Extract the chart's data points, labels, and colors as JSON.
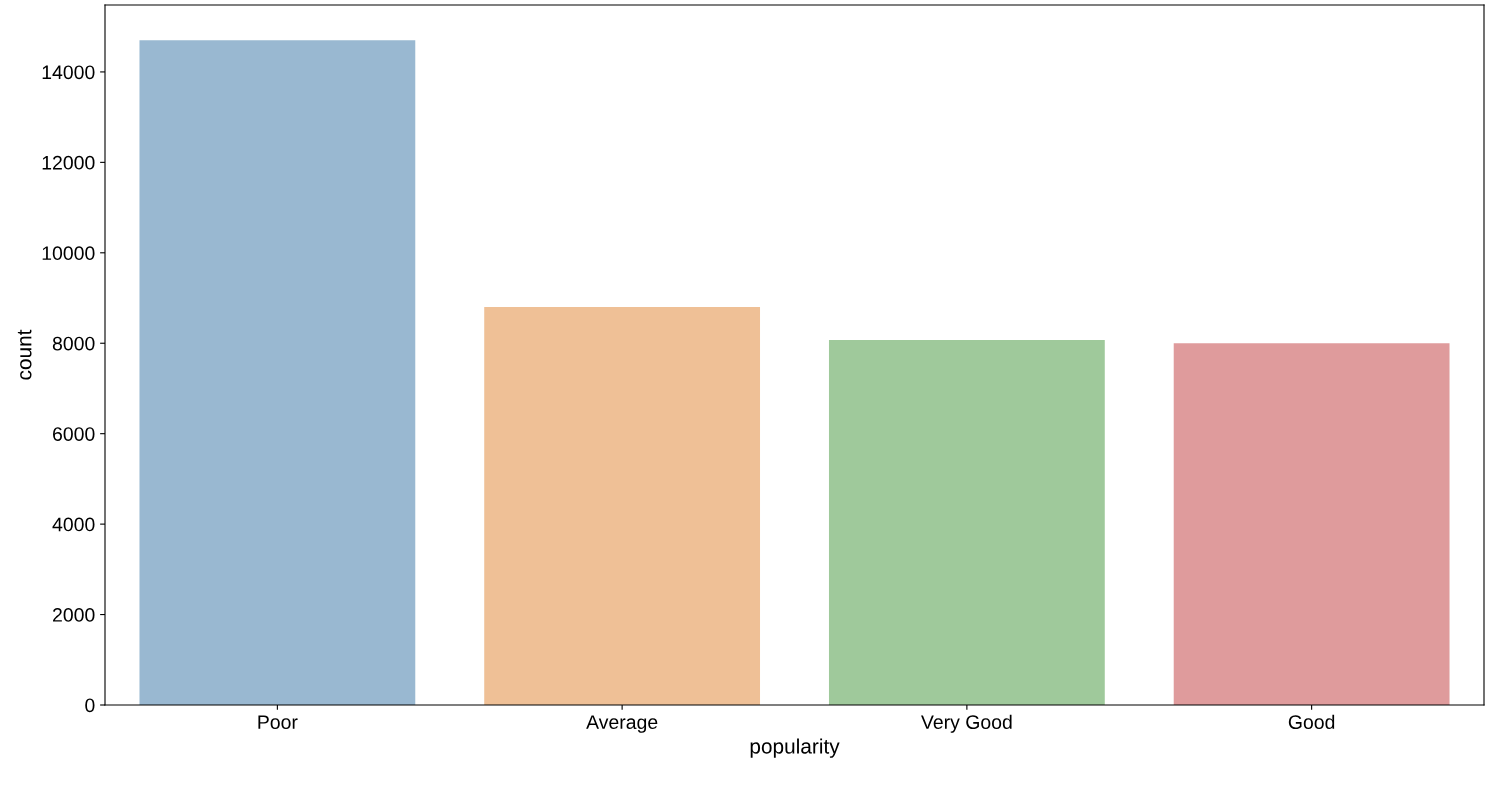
{
  "chart_data": {
    "type": "bar",
    "xlabel": "popularity",
    "ylabel": "count",
    "categories": [
      "Poor",
      "Average",
      "Very Good",
      "Good"
    ],
    "values": [
      14700,
      8800,
      8070,
      8000
    ],
    "colors": [
      "#99b8d1",
      "#efc096",
      "#9fc99b",
      "#df9b9c"
    ],
    "ylim": [
      0,
      15480
    ],
    "yticks": [
      0,
      2000,
      4000,
      6000,
      8000,
      10000,
      12000,
      14000
    ],
    "grid": false
  }
}
